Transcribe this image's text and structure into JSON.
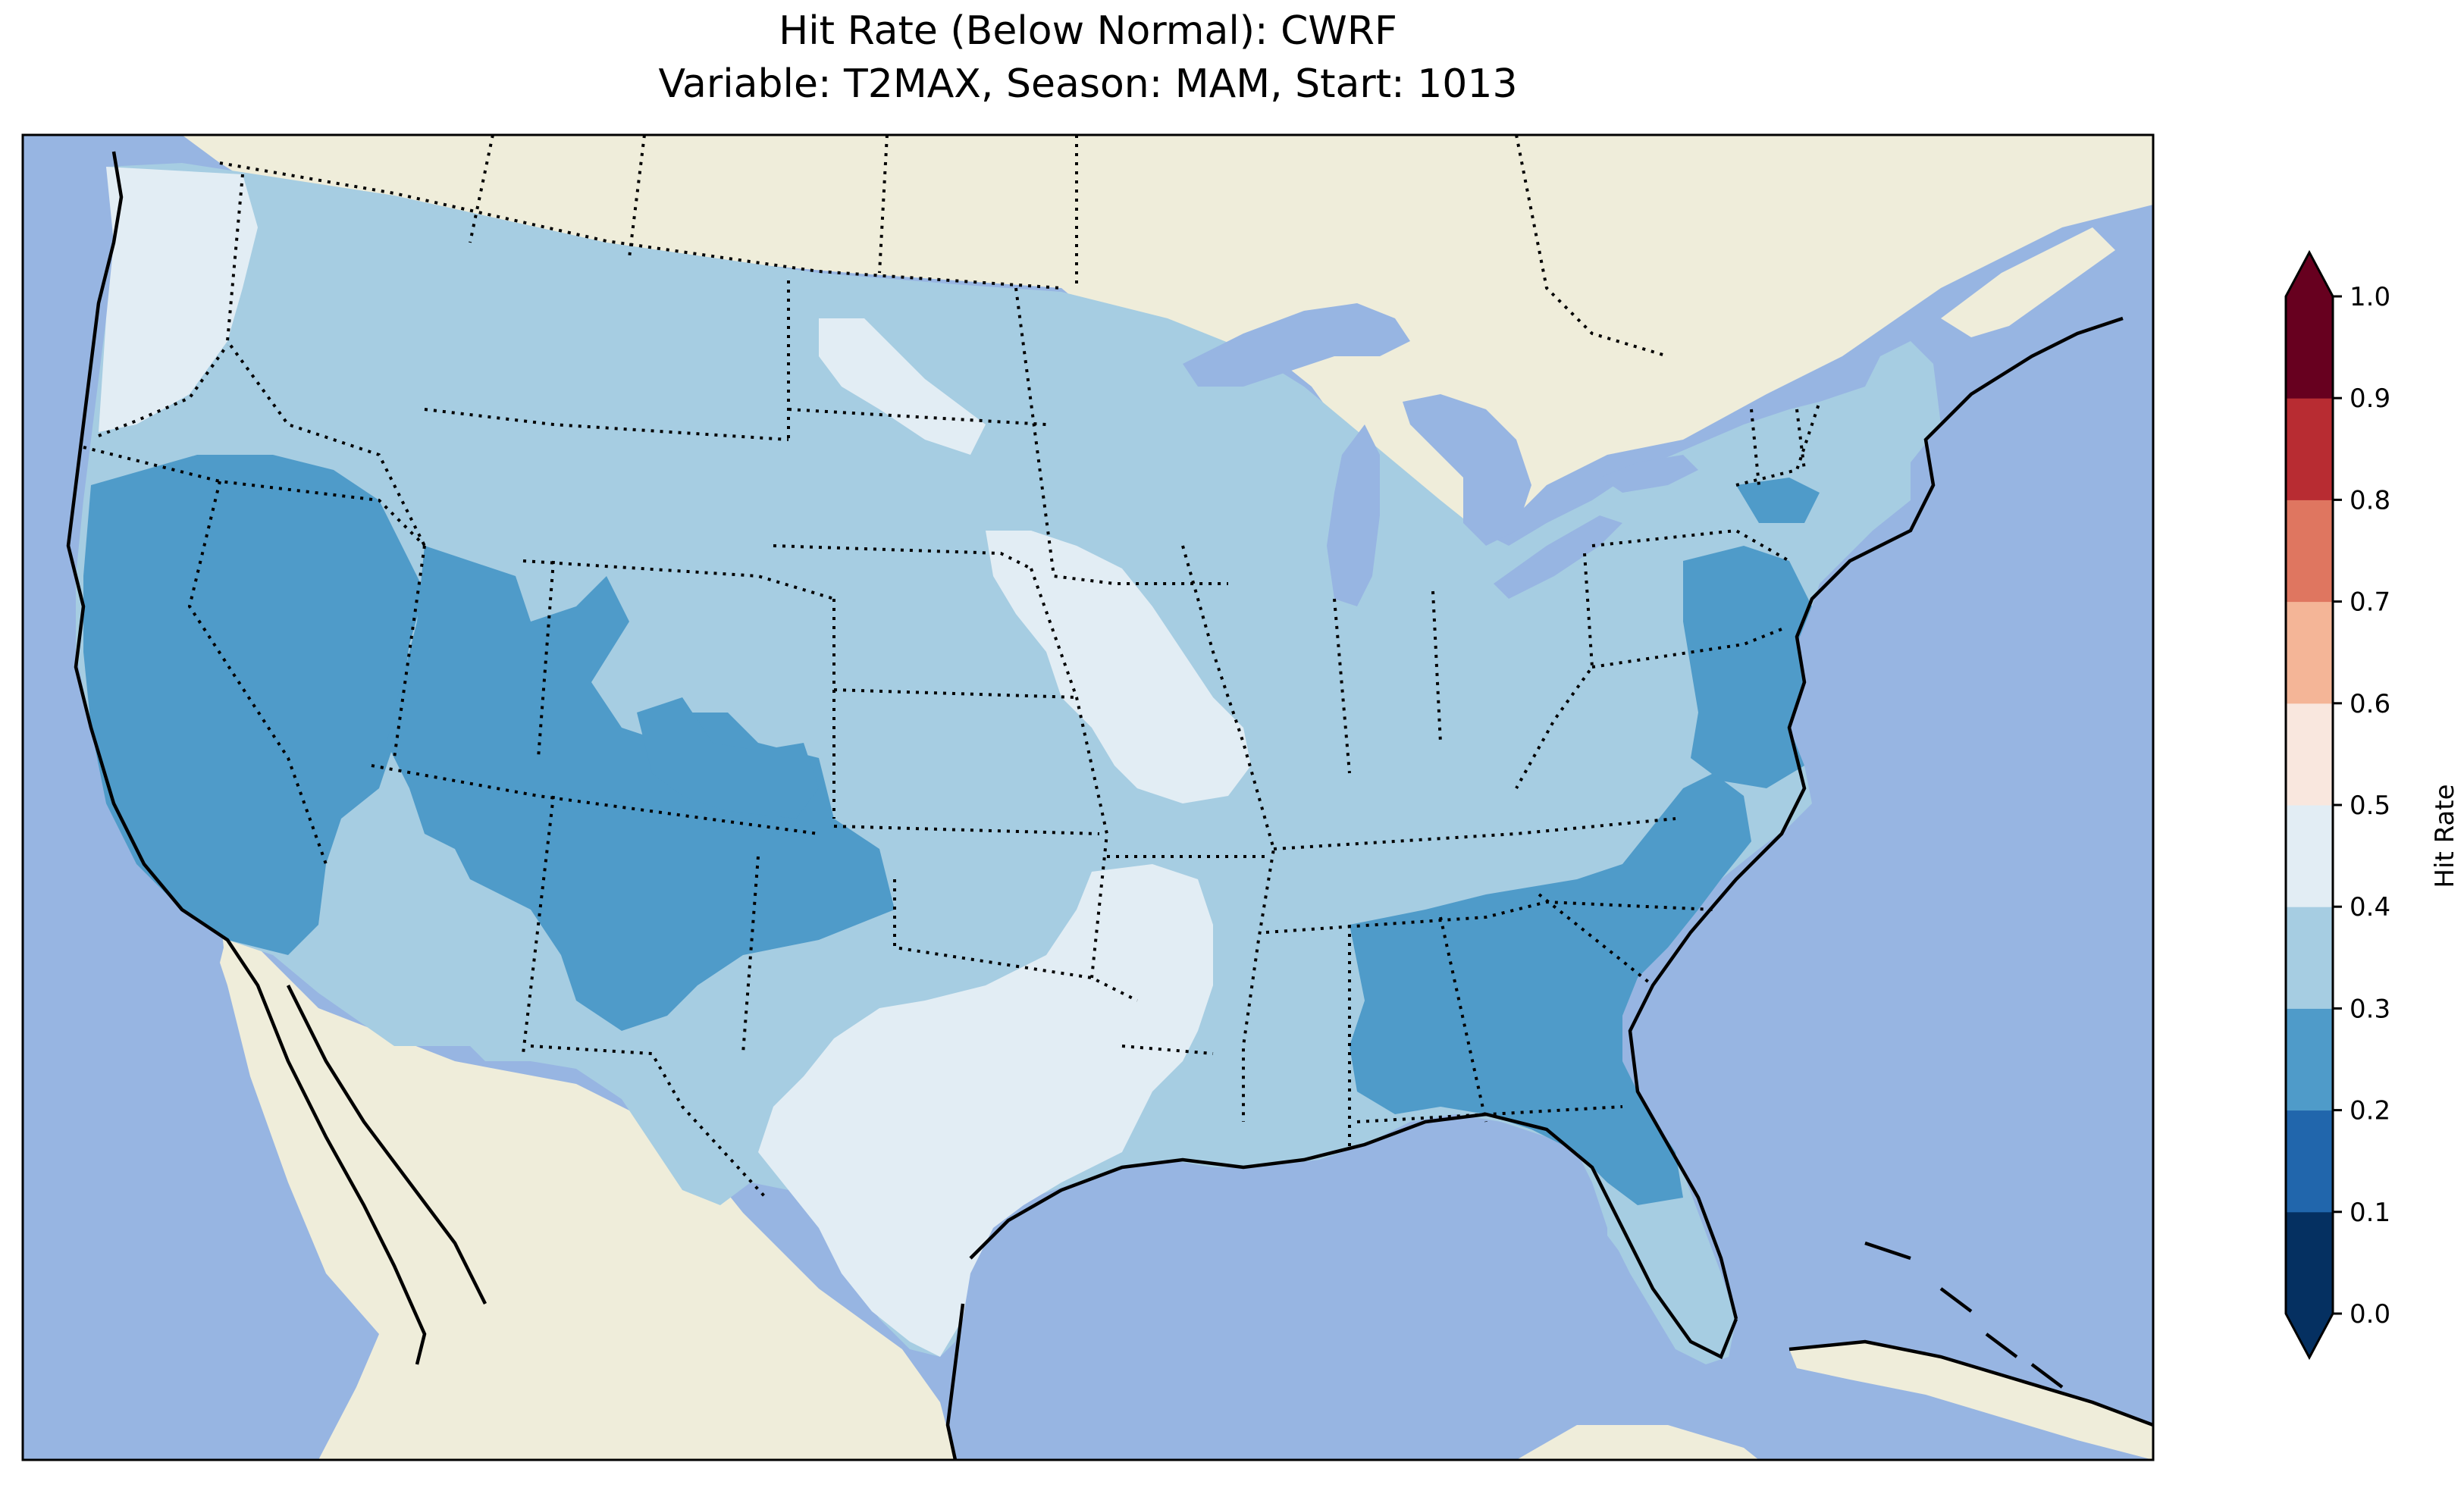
{
  "title_line1": "Hit Rate (Below Normal): CWRF",
  "title_line2": "Variable: T2MAX, Season: MAM, Start: 1013",
  "colorbar": {
    "label": "Hit Rate",
    "ticks": [
      "0.0",
      "0.1",
      "0.2",
      "0.3",
      "0.4",
      "0.5",
      "0.6",
      "0.7",
      "0.8",
      "0.9",
      "1.0"
    ],
    "bins": [
      {
        "from": 0.0,
        "to": 0.1,
        "color": "#053061"
      },
      {
        "from": 0.1,
        "to": 0.2,
        "color": "#2166ac"
      },
      {
        "from": 0.2,
        "to": 0.3,
        "color": "#4f9bc9"
      },
      {
        "from": 0.3,
        "to": 0.4,
        "color": "#a6cde2"
      },
      {
        "from": 0.4,
        "to": 0.5,
        "color": "#e2edf4"
      },
      {
        "from": 0.5,
        "to": 0.6,
        "color": "#f9e7de"
      },
      {
        "from": 0.6,
        "to": 0.7,
        "color": "#f4b597"
      },
      {
        "from": 0.7,
        "to": 0.8,
        "color": "#df7660"
      },
      {
        "from": 0.8,
        "to": 0.9,
        "color": "#b82c32"
      },
      {
        "from": 0.9,
        "to": 1.0,
        "color": "#67001f"
      }
    ],
    "extend_low_color": "#053061",
    "extend_high_color": "#67001f"
  },
  "map": {
    "ocean_color": "#97b5e2",
    "land_color": "#efedda",
    "regions": [
      {
        "name": "Pacific Northwest coast",
        "hit_rate": 0.45
      },
      {
        "name": "California and Nevada",
        "hit_rate": 0.25
      },
      {
        "name": "Utah and Four Corners",
        "hit_rate": 0.25
      },
      {
        "name": "Northern Plains and Rockies",
        "hit_rate": 0.35
      },
      {
        "name": "Iowa and Missouri",
        "hit_rate": 0.45
      },
      {
        "name": "Texas and Arkansas",
        "hit_rate": 0.45
      },
      {
        "name": "Southeast",
        "hit_rate": 0.25
      },
      {
        "name": "Mid-Atlantic coast",
        "hit_rate": 0.25
      },
      {
        "name": "Ohio Valley and Northeast",
        "hit_rate": 0.35
      },
      {
        "name": "Florida peninsula",
        "hit_rate": 0.35
      }
    ]
  }
}
